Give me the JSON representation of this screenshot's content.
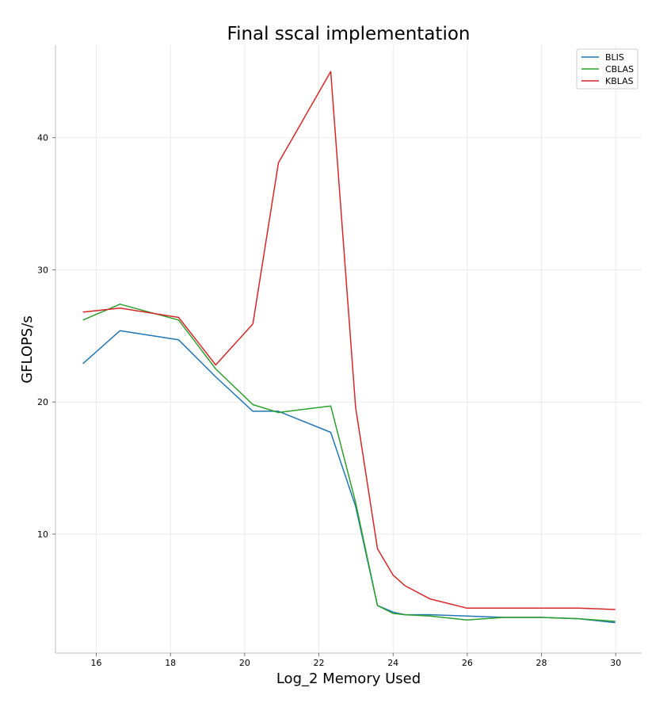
{
  "chart_data": {
    "type": "line",
    "title": "Final sscal implementation",
    "xlabel": "Log_2 Memory Used",
    "ylabel": "GFLOPS/s",
    "xlim": [
      14.9,
      30.7
    ],
    "ylim": [
      1.0,
      47.0
    ],
    "xticks": [
      16,
      18,
      20,
      22,
      24,
      26,
      28,
      30
    ],
    "yticks": [
      10,
      20,
      30,
      40
    ],
    "grid": true,
    "legend_position": "top-right",
    "series": [
      {
        "name": "BLIS",
        "color": "#1f77b4",
        "x": [
          15.64,
          16.64,
          18.22,
          19.22,
          20.22,
          20.91,
          22.32,
          22.99,
          23.58,
          24.0,
          24.32,
          24.99,
          25.99,
          26.99,
          27.99,
          28.99,
          29.99
        ],
        "y": [
          22.9,
          25.4,
          24.7,
          21.9,
          19.3,
          19.3,
          17.7,
          12.1,
          4.6,
          4.1,
          3.9,
          3.9,
          3.8,
          3.7,
          3.7,
          3.6,
          3.3
        ]
      },
      {
        "name": "CBLAS",
        "color": "#2ca02c",
        "x": [
          15.64,
          16.64,
          18.22,
          19.22,
          20.22,
          20.91,
          22.32,
          22.99,
          23.58,
          24.0,
          24.32,
          24.99,
          25.99,
          26.99,
          27.99,
          28.99,
          29.99
        ],
        "y": [
          26.2,
          27.4,
          26.2,
          22.5,
          19.8,
          19.2,
          19.7,
          12.4,
          4.6,
          4.0,
          3.9,
          3.8,
          3.5,
          3.7,
          3.7,
          3.6,
          3.4
        ]
      },
      {
        "name": "KBLAS",
        "color": "#d62728",
        "x": [
          15.64,
          16.64,
          18.22,
          19.22,
          20.22,
          20.91,
          22.32,
          22.99,
          23.58,
          24.0,
          24.32,
          24.99,
          25.99,
          26.99,
          27.99,
          28.99,
          29.99
        ],
        "y": [
          26.8,
          27.1,
          26.4,
          22.8,
          25.9,
          38.1,
          45.0,
          19.6,
          8.9,
          6.9,
          6.1,
          5.1,
          4.4,
          4.4,
          4.4,
          4.4,
          4.3
        ]
      }
    ]
  }
}
